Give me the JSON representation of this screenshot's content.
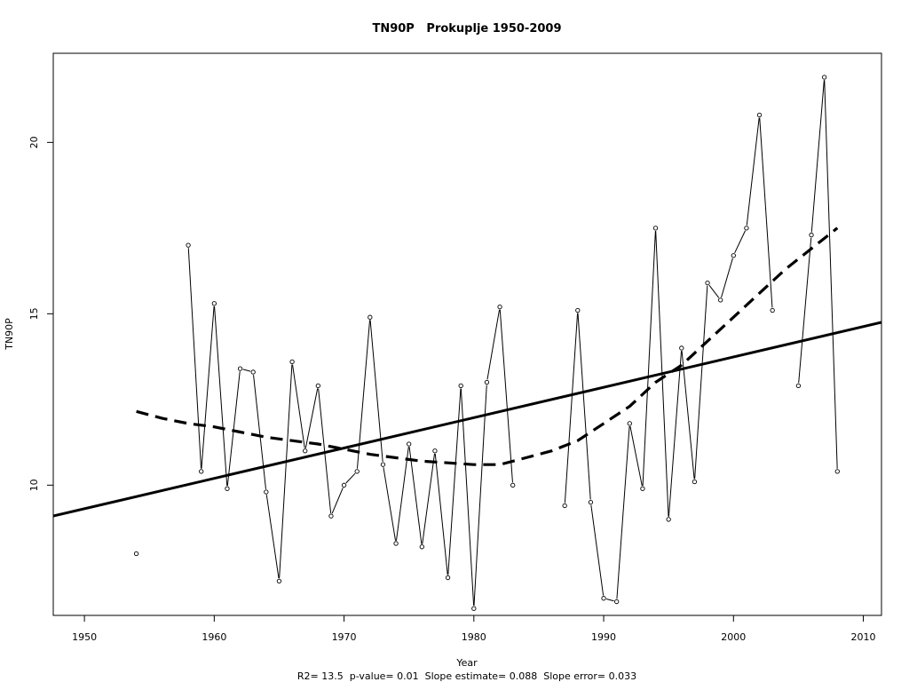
{
  "chart_data": {
    "type": "line",
    "title": "TN90P   Prokuplje 1950-2009",
    "xlabel": "Year",
    "ylabel": "TN90P",
    "footer": "R2= 13.5  p-value= 0.01  Slope estimate= 0.088  Slope error= 0.033",
    "xlim": [
      1947.6,
      2011.4
    ],
    "ylim": [
      6.2,
      22.6
    ],
    "x_ticks": [
      1950,
      1960,
      1970,
      1980,
      1990,
      2000,
      2010
    ],
    "y_ticks": [
      10,
      15,
      20
    ],
    "grid": false,
    "series": [
      {
        "kind": "observed",
        "points": [
          [
            1954,
            8.0
          ],
          [
            1958,
            17.0
          ],
          [
            1959,
            10.4
          ],
          [
            1960,
            15.3
          ],
          [
            1961,
            9.9
          ],
          [
            1962,
            13.4
          ],
          [
            1963,
            13.3
          ],
          [
            1964,
            9.8
          ],
          [
            1965,
            7.2
          ],
          [
            1966,
            13.6
          ],
          [
            1967,
            11.0
          ],
          [
            1968,
            12.9
          ],
          [
            1969,
            9.1
          ],
          [
            1970,
            10.0
          ],
          [
            1971,
            10.4
          ],
          [
            1972,
            14.9
          ],
          [
            1973,
            10.6
          ],
          [
            1974,
            8.3
          ],
          [
            1975,
            11.2
          ],
          [
            1976,
            8.2
          ],
          [
            1977,
            11.0
          ],
          [
            1978,
            7.3
          ],
          [
            1979,
            12.9
          ],
          [
            1980,
            6.4
          ],
          [
            1981,
            13.0
          ],
          [
            1982,
            15.2
          ],
          [
            1983,
            10.0
          ],
          [
            1987,
            9.4
          ],
          [
            1988,
            15.1
          ],
          [
            1989,
            9.5
          ],
          [
            1990,
            6.7
          ],
          [
            1991,
            6.6
          ],
          [
            1992,
            11.8
          ],
          [
            1993,
            9.9
          ],
          [
            1994,
            17.5
          ],
          [
            1995,
            9.0
          ],
          [
            1996,
            14.0
          ],
          [
            1997,
            10.1
          ],
          [
            1998,
            15.9
          ],
          [
            1999,
            15.4
          ],
          [
            2000,
            16.7
          ],
          [
            2001,
            17.5
          ],
          [
            2002,
            20.8
          ],
          [
            2003,
            15.1
          ],
          [
            2005,
            12.9
          ],
          [
            2006,
            17.3
          ],
          [
            2007,
            21.9
          ],
          [
            2008,
            10.4
          ]
        ]
      },
      {
        "kind": "linear_trend",
        "points": [
          [
            1947.6,
            9.1
          ],
          [
            2011.4,
            14.75
          ]
        ]
      },
      {
        "kind": "smoothed",
        "points": [
          [
            1954,
            12.15
          ],
          [
            1956,
            11.95
          ],
          [
            1958,
            11.8
          ],
          [
            1960,
            11.7
          ],
          [
            1962,
            11.55
          ],
          [
            1964,
            11.4
          ],
          [
            1966,
            11.3
          ],
          [
            1968,
            11.2
          ],
          [
            1970,
            11.05
          ],
          [
            1972,
            10.9
          ],
          [
            1974,
            10.8
          ],
          [
            1976,
            10.7
          ],
          [
            1978,
            10.65
          ],
          [
            1980,
            10.6
          ],
          [
            1982,
            10.6
          ],
          [
            1984,
            10.8
          ],
          [
            1986,
            11.0
          ],
          [
            1988,
            11.3
          ],
          [
            1990,
            11.8
          ],
          [
            1992,
            12.3
          ],
          [
            1994,
            13.0
          ],
          [
            1996,
            13.5
          ],
          [
            1998,
            14.2
          ],
          [
            2000,
            14.9
          ],
          [
            2002,
            15.6
          ],
          [
            2004,
            16.3
          ],
          [
            2006,
            16.9
          ],
          [
            2008,
            17.5
          ]
        ]
      }
    ]
  }
}
